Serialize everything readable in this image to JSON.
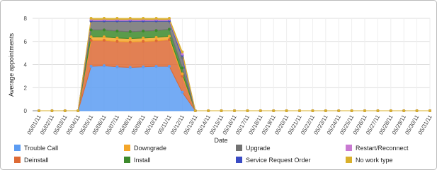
{
  "chart_data": {
    "type": "stacked_area",
    "x_label": "Date",
    "y_label": "Average appointments",
    "categories": [
      "05/01/11",
      "05/02/11",
      "05/03/11",
      "05/04/11",
      "05/05/11",
      "05/06/11",
      "05/07/11",
      "05/08/11",
      "05/09/11",
      "05/10/11",
      "05/11/11",
      "05/12/11",
      "05/13/11",
      "05/14/11",
      "05/15/11",
      "05/16/11",
      "05/17/11",
      "05/18/11",
      "05/19/11",
      "05/20/11",
      "05/21/11",
      "05/22/11",
      "05/23/11",
      "05/24/11",
      "05/25/11",
      "05/26/11",
      "05/27/11",
      "05/28/11",
      "05/29/11",
      "05/30/11",
      "05/31/11"
    ],
    "ylim": [
      0,
      8
    ],
    "yticks": [
      0,
      2,
      4,
      6,
      8
    ],
    "grid": true,
    "series": [
      {
        "name": "Trouble Call",
        "color": "#5c9cf2",
        "values": [
          0,
          0,
          0,
          0,
          3.85,
          3.9,
          3.8,
          3.75,
          3.8,
          3.85,
          3.85,
          1.6,
          0,
          0,
          0,
          0,
          0,
          0,
          0,
          0,
          0,
          0,
          0,
          0,
          0,
          0,
          0,
          0,
          0,
          0,
          0
        ]
      },
      {
        "name": "Deinstall",
        "color": "#dd6a35",
        "values": [
          0,
          0,
          0,
          0,
          2.25,
          2.2,
          2.2,
          2.2,
          2.2,
          2.2,
          2.3,
          1.4,
          0,
          0,
          0,
          0,
          0,
          0,
          0,
          0,
          0,
          0,
          0,
          0,
          0,
          0,
          0,
          0,
          0,
          0,
          0
        ]
      },
      {
        "name": "Downgrade",
        "color": "#f4a62a",
        "values": [
          0,
          0,
          0,
          0,
          0.3,
          0.3,
          0.3,
          0.3,
          0.3,
          0.3,
          0.3,
          0.2,
          0,
          0,
          0,
          0,
          0,
          0,
          0,
          0,
          0,
          0,
          0,
          0,
          0,
          0,
          0,
          0,
          0,
          0,
          0
        ]
      },
      {
        "name": "Install",
        "color": "#3d8a2c",
        "values": [
          0,
          0,
          0,
          0,
          0.6,
          0.6,
          0.6,
          0.6,
          0.6,
          0.6,
          0.6,
          0.5,
          0,
          0,
          0,
          0,
          0,
          0,
          0,
          0,
          0,
          0,
          0,
          0,
          0,
          0,
          0,
          0,
          0,
          0,
          0
        ]
      },
      {
        "name": "Upgrade",
        "color": "#727272",
        "values": [
          0,
          0,
          0,
          0,
          0.75,
          0.75,
          0.85,
          0.9,
          0.85,
          0.8,
          0.7,
          0.9,
          0,
          0,
          0,
          0,
          0,
          0,
          0,
          0,
          0,
          0,
          0,
          0,
          0,
          0,
          0,
          0,
          0,
          0,
          0
        ]
      },
      {
        "name": "Service Request Order",
        "color": "#3a4bc4",
        "values": [
          0,
          0,
          0,
          0,
          0.05,
          0.05,
          0.05,
          0.05,
          0.05,
          0.05,
          0.05,
          0.2,
          0,
          0,
          0,
          0,
          0,
          0,
          0,
          0,
          0,
          0,
          0,
          0,
          0,
          0,
          0,
          0,
          0,
          0,
          0
        ]
      },
      {
        "name": "Restart/Reconnect",
        "color": "#c97ad2",
        "values": [
          0,
          0,
          0,
          0,
          0.1,
          0.1,
          0.1,
          0.1,
          0.1,
          0.1,
          0.1,
          0.1,
          0,
          0,
          0,
          0,
          0,
          0,
          0,
          0,
          0,
          0,
          0,
          0,
          0,
          0,
          0,
          0,
          0,
          0,
          0
        ]
      },
      {
        "name": "No work type",
        "color": "#d9b02b",
        "values": [
          0,
          0,
          0,
          0,
          0.1,
          0.1,
          0.1,
          0.1,
          0.1,
          0.1,
          0.1,
          0.2,
          0,
          0,
          0,
          0,
          0,
          0,
          0,
          0,
          0,
          0,
          0,
          0,
          0,
          0,
          0,
          0,
          0,
          0,
          0
        ]
      }
    ]
  }
}
